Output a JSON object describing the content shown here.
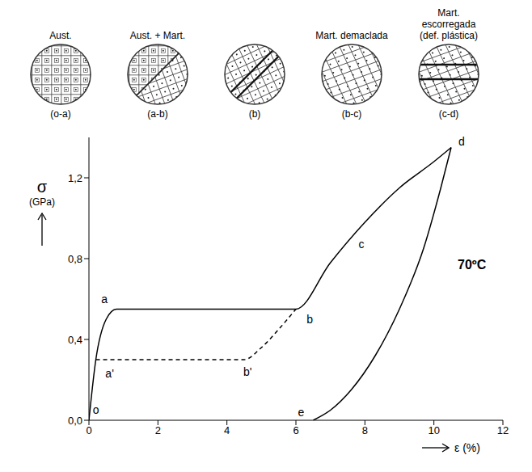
{
  "chart_data": {
    "type": "line",
    "xlabel": "ε (%)",
    "ylabel": "σ (GPa)",
    "xlim": [
      0,
      12
    ],
    "xticks": [
      0,
      2,
      4,
      6,
      8,
      10,
      12
    ],
    "ylim": [
      0,
      1.4
    ],
    "yticks": [
      {
        "value": 0,
        "label": "0,0"
      },
      {
        "value": 0.4,
        "label": "0,4"
      },
      {
        "value": 0.8,
        "label": "0,8"
      },
      {
        "value": 1.2,
        "label": "1,2"
      }
    ],
    "grid": false,
    "series": [
      {
        "color": "#000000",
        "line_style": "solid",
        "x": [
          0,
          0.2,
          0.5,
          0.8,
          6,
          7,
          8,
          9,
          10,
          10.5
        ],
        "values": [
          0,
          0.3,
          0.5,
          0.55,
          0.55,
          0.78,
          0.98,
          1.15,
          1.28,
          1.35
        ]
      },
      {
        "color": "#000000",
        "line_style": "dashed",
        "x": [
          0.2,
          4.5,
          5,
          5.5,
          6
        ],
        "values": [
          0.3,
          0.3,
          0.36,
          0.45,
          0.55
        ]
      },
      {
        "color": "#000000",
        "line_style": "solid",
        "x": [
          10.5,
          10.2,
          9.7,
          9,
          8.3,
          7.6,
          7,
          6.5
        ],
        "values": [
          1.35,
          1.15,
          0.85,
          0.55,
          0.32,
          0.15,
          0.05,
          0
        ]
      }
    ],
    "annotations": [
      {
        "text": "o",
        "x": 0.2,
        "y": 0.05
      },
      {
        "text": "a",
        "x": 0.45,
        "y": 0.6
      },
      {
        "text": "a'",
        "x": 0.6,
        "y": 0.23
      },
      {
        "text": "b",
        "x": 6.4,
        "y": 0.5
      },
      {
        "text": "b'",
        "x": 4.6,
        "y": 0.24
      },
      {
        "text": "c",
        "x": 7.9,
        "y": 0.87
      },
      {
        "text": "d",
        "x": 10.8,
        "y": 1.38
      },
      {
        "text": "e",
        "x": 6.15,
        "y": 0.04
      },
      {
        "text": "70ºC",
        "x": 11.1,
        "y": 0.77
      }
    ]
  },
  "diagram": {
    "panels": [
      {
        "title": "Aust.",
        "caption": "(o-a)"
      },
      {
        "title": "Aust. + Mart.",
        "caption": "(a-b)"
      },
      {
        "title": "",
        "caption": "(b)"
      },
      {
        "title": "Mart. demaclada",
        "caption": "(b-c)"
      },
      {
        "title": "Mart. escorregada (def. plástica)",
        "caption": "(c-d)"
      }
    ]
  }
}
